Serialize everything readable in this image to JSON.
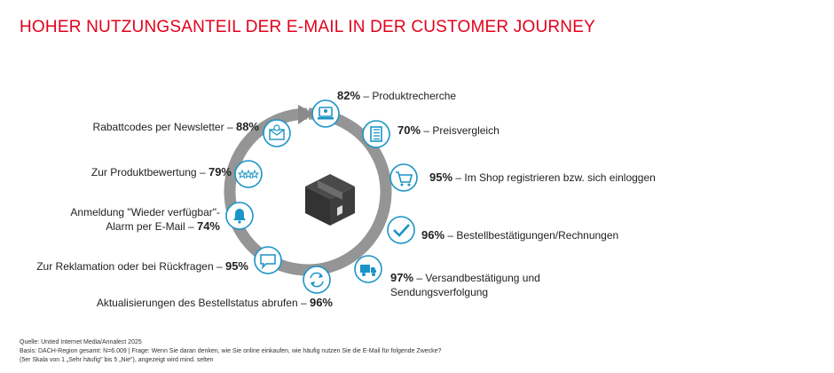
{
  "title": "HOHER NUTZUNGSANTEIL DER E-MAIL IN DER CUSTOMER JOURNEY",
  "steps": [
    {
      "value": "82%",
      "text": "– Produktrecherche",
      "icon": "laptop-icon"
    },
    {
      "value": "70%",
      "text": "– Preisvergleich",
      "icon": "checklist-icon"
    },
    {
      "value": "95%",
      "text": "– Im Shop registrieren bzw. sich einloggen",
      "icon": "cart-icon"
    },
    {
      "value": "96%",
      "text": "– Bestellbestätigungen/Rechnungen",
      "icon": "checkmark-icon"
    },
    {
      "value": "97%",
      "text": "– Versandbestätigung und",
      "text2": "Sendungsverfolgung",
      "icon": "truck-icon"
    },
    {
      "value": "96%",
      "text": "Aktualisierungen des Bestellstatus abrufen –",
      "icon": "refresh-icon"
    },
    {
      "value": "95%",
      "text": "Zur Reklamation oder bei Rückfragen –",
      "icon": "speech-bubble-icon"
    },
    {
      "value": "74%",
      "text": "Anmeldung  \"Wieder verfügbar\"-",
      "text2": "Alarm per E-Mail –",
      "icon": "bell-icon"
    },
    {
      "value": "79%",
      "text": "Zur Produktbewertung –",
      "icon": "stars-icon"
    },
    {
      "value": "88%",
      "text": "Rabattcodes per Newsletter –",
      "icon": "percent-mail-icon"
    }
  ],
  "center_icon": "package-icon",
  "colors": {
    "title": "#e3001b",
    "icon": "#1b94c6",
    "ring": "#8a8a8a"
  },
  "footer": {
    "source": "Quelle: United Internet Media/Annalect 2025",
    "basis": "Basis: DACH-Region gesamt: N=6.009 | Frage: Wenn Sie daran denken, wie Sie online einkaufen, wie häufig nutzen Sie die E-Mail für folgende Zwecke?",
    "scale": "(5er Skala von 1 „Sehr häufig\" bis 5 „Nie\"), angezeigt wird mind. selten"
  }
}
